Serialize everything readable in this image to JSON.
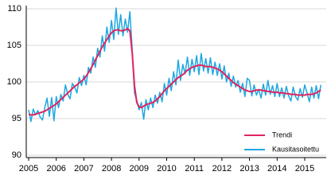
{
  "chart_data": {
    "type": "line",
    "categories": [
      "2005",
      null,
      null,
      null,
      null,
      null,
      null,
      null,
      null,
      null,
      null,
      null,
      "2006",
      null,
      null,
      null,
      null,
      null,
      null,
      null,
      null,
      null,
      null,
      null,
      "2007",
      null,
      null,
      null,
      null,
      null,
      null,
      null,
      null,
      null,
      null,
      null,
      "2008",
      null,
      null,
      null,
      null,
      null,
      null,
      null,
      null,
      null,
      null,
      null,
      "2009",
      null,
      null,
      null,
      null,
      null,
      null,
      null,
      null,
      null,
      null,
      null,
      "2010",
      null,
      null,
      null,
      null,
      null,
      null,
      null,
      null,
      null,
      null,
      null,
      "2011",
      null,
      null,
      null,
      null,
      null,
      null,
      null,
      null,
      null,
      null,
      null,
      "2012",
      null,
      null,
      null,
      null,
      null,
      null,
      null,
      null,
      null,
      null,
      null,
      "2013",
      null,
      null,
      null,
      null,
      null,
      null,
      null,
      null,
      null,
      null,
      null,
      "2014",
      null,
      null,
      null,
      null,
      null,
      null,
      null,
      null,
      null,
      null,
      null,
      "2015",
      null,
      null,
      null,
      null,
      null,
      null,
      null
    ],
    "series": [
      {
        "name": "Kausitasoitettu",
        "color": "#1ea7e1",
        "values": [
          96.2,
          94.6,
          96.3,
          95.5,
          96.1,
          95.2,
          94.8,
          96.5,
          97.8,
          95.3,
          97.9,
          94.7,
          98.0,
          96.5,
          98.3,
          97.4,
          99.6,
          98.3,
          97.7,
          99.8,
          99.3,
          98.5,
          100.6,
          99.5,
          100.9,
          99.6,
          102.0,
          101.2,
          103.4,
          102.0,
          104.6,
          103.4,
          106.3,
          104.2,
          107.5,
          105.4,
          108.4,
          105.8,
          110.1,
          106.5,
          109.2,
          106.3,
          108.6,
          106.8,
          109.6,
          104.5,
          98.5,
          97.5,
          96.2,
          97.2,
          94.9,
          97.6,
          96.2,
          97.8,
          96.5,
          98.2,
          97.1,
          98.6,
          97.3,
          99.8,
          98.2,
          100.5,
          98.8,
          101.4,
          99.6,
          103.0,
          100.2,
          102.4,
          101.1,
          103.4,
          100.9,
          103.1,
          101.4,
          103.6,
          101.0,
          103.9,
          101.5,
          103.2,
          101.2,
          103.3,
          101.0,
          102.7,
          100.9,
          102.5,
          100.4,
          102.2,
          100.0,
          101.2,
          99.4,
          100.8,
          99.3,
          100.2,
          98.6,
          99.8,
          98.0,
          100.5,
          100.2,
          98.1,
          99.6,
          98.2,
          99.0,
          97.8,
          99.7,
          98.2,
          100.2,
          98.3,
          99.5,
          98.0,
          99.8,
          98.0,
          99.2,
          97.8,
          99.4,
          98.1,
          97.4,
          99.3,
          98.0,
          97.5,
          99.1,
          97.9,
          99.6,
          98.5,
          97.3,
          99.3,
          97.8,
          99.5,
          97.7,
          99.6
        ]
      },
      {
        "name": "Trendi",
        "color": "#e1245f",
        "values": [
          95.6,
          95.5,
          95.5,
          95.6,
          95.7,
          95.8,
          95.9,
          96.0,
          96.2,
          96.4,
          96.6,
          96.8,
          97.0,
          97.3,
          97.6,
          97.9,
          98.2,
          98.5,
          98.8,
          99.1,
          99.4,
          99.6,
          99.9,
          100.1,
          100.4,
          100.8,
          101.3,
          101.8,
          102.4,
          103.0,
          103.6,
          104.2,
          104.8,
          105.3,
          105.8,
          106.3,
          106.7,
          107.0,
          107.1,
          107.1,
          107.0,
          107.0,
          107.1,
          107.3,
          107.0,
          104.0,
          99.5,
          97.2,
          96.6,
          96.5,
          96.7,
          96.9,
          97.0,
          97.1,
          97.2,
          97.4,
          97.7,
          98.0,
          98.4,
          98.8,
          99.1,
          99.4,
          99.7,
          100.0,
          100.3,
          100.6,
          100.8,
          101.0,
          101.3,
          101.6,
          101.8,
          102.0,
          102.1,
          102.2,
          102.3,
          102.3,
          102.2,
          102.1,
          102.1,
          102.1,
          102.0,
          101.9,
          101.8,
          101.6,
          101.4,
          101.1,
          100.8,
          100.5,
          100.2,
          99.9,
          99.7,
          99.5,
          99.3,
          99.1,
          98.9,
          98.8,
          98.7,
          98.7,
          98.8,
          98.9,
          98.9,
          98.9,
          98.8,
          98.8,
          98.7,
          98.7,
          98.6,
          98.6,
          98.6,
          98.5,
          98.5,
          98.5,
          98.4,
          98.4,
          98.3,
          98.3,
          98.3,
          98.2,
          98.2,
          98.2,
          98.2,
          98.3,
          98.3,
          98.3,
          98.4,
          98.5,
          98.7,
          98.9
        ]
      }
    ],
    "legend_order": [
      1,
      0
    ],
    "ylim": [
      90,
      110
    ],
    "yticks": [
      90,
      95,
      100,
      105,
      110
    ],
    "grid": true,
    "legend": "lower right"
  }
}
